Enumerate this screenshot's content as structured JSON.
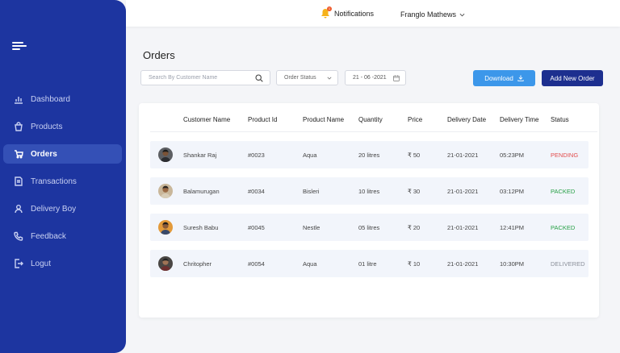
{
  "sidebar": {
    "items": [
      {
        "label": "Dashboard",
        "icon": "bar-chart-icon"
      },
      {
        "label": "Products",
        "icon": "bag-icon"
      },
      {
        "label": "Orders",
        "icon": "cart-icon",
        "active": true
      },
      {
        "label": "Transactions",
        "icon": "transactions-icon"
      },
      {
        "label": "Delivery Boy",
        "icon": "user-icon"
      },
      {
        "label": "Feedback",
        "icon": "phone-icon"
      },
      {
        "label": "Logut",
        "icon": "logout-icon"
      }
    ]
  },
  "topbar": {
    "notifications_label": "Notifications",
    "notification_count": "1",
    "user_name": "Franglo Mathews"
  },
  "page": {
    "title": "Orders",
    "search_placeholder": "Search By Customer Name",
    "status_select": "Order Status",
    "date_value": "21 - 06 -2021",
    "download_label": "Download",
    "add_order_label": "Add New Order"
  },
  "table": {
    "headers": [
      "Customer Name",
      "Product Id",
      "Product Name",
      "Quantity",
      "Price",
      "Delivery Date",
      "Delivery Time",
      "Status"
    ],
    "rows": [
      {
        "name": "Shankar Raj",
        "pid": "#0023",
        "product": "Aqua",
        "qty": "20 litres",
        "price": "₹ 50",
        "date": "21-01-2021",
        "time": "05:23PM",
        "status": "PENDING",
        "status_color": "#e24c4c"
      },
      {
        "name": "Balamurugan",
        "pid": "#0034",
        "product": "Bisleri",
        "qty": "10 litres",
        "price": "₹ 30",
        "date": "21-01-2021",
        "time": "03:12PM",
        "status": "PACKED",
        "status_color": "#27a046"
      },
      {
        "name": "Suresh Babu",
        "pid": "#0045",
        "product": "Nestle",
        "qty": "05 litres",
        "price": "₹ 20",
        "date": "21-01-2021",
        "time": "12:41PM",
        "status": "PACKED",
        "status_color": "#27a046"
      },
      {
        "name": "Chritopher",
        "pid": "#0054",
        "product": "Aqua",
        "qty": "01 litre",
        "price": "₹ 10",
        "date": "21-01-2021",
        "time": "10:30PM",
        "status": "DELIVERED",
        "status_color": "#8a8f99"
      }
    ]
  },
  "colors": {
    "sidebar": "#1d35a0",
    "active_item": "#3450b6",
    "download": "#3c97ea",
    "add_order": "#1d2f8f"
  }
}
